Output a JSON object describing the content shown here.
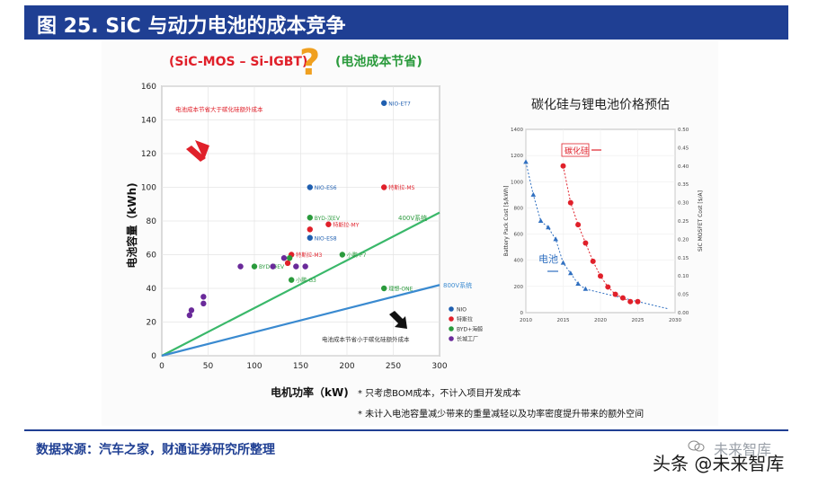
{
  "header": {
    "title": "图 25. SiC 与动力电池的成本竞争"
  },
  "footer": {
    "source": "数据来源：汽车之家，财通证券研究所整理",
    "watermark": "头条 @未来智库",
    "watermark_faint": "未来智库"
  },
  "colors": {
    "header_bg": "#1f3f93",
    "red": "#e0202a",
    "green": "#2a9a3c",
    "blue": "#1f5fb0",
    "purple": "#6a2a9a",
    "line_400v": "#3ab86a",
    "line_800v": "#3a8ad0",
    "question": "#f0a020"
  },
  "main_chart": {
    "banner_left": "(SiC-MOS – Si-IGBT)",
    "banner_question": "?",
    "banner_right": "(电池成本节省)",
    "annot_top": "电池成本节省大于碳化硅额外成本",
    "annot_bottom": "电池成本节省小于碳化硅额外成本",
    "label_400v": "400V系统",
    "label_800v": "800V系统",
    "legend_items": [
      "NIO",
      "特斯拉",
      "BYD+海鲸",
      "长城工厂"
    ],
    "notes": [
      "* 只考虑BOM成本，不计入项目开发成本",
      "* 未计入电池容量减少带来的重量减轻以及功率密度提升带来的额外空间"
    ]
  },
  "side_chart": {
    "title": "碳化硅与锂电池价格预估",
    "label_sic": "碳化硅",
    "label_battery": "电池",
    "ylabel_left": "Battery Pack Cost [$/kWh]",
    "ylabel_right": "SiC MOSFET Cost [$/A]"
  },
  "chart_data": [
    {
      "type": "scatter",
      "xlabel": "电机功率（kW)",
      "ylabel": "电池容量（kWh)",
      "xlim": [
        0,
        300
      ],
      "ylim": [
        0,
        160
      ],
      "x_ticks": [
        "0",
        "50",
        "100",
        "150",
        "200",
        "250",
        "300"
      ],
      "y_ticks": [
        "0",
        "20",
        "40",
        "60",
        "80",
        "100",
        "120",
        "140",
        "160"
      ],
      "series": [
        {
          "name": "NIO",
          "color": "#1f5fb0",
          "points": [
            {
              "x": 240,
              "y": 150,
              "label": "NIO-ET7"
            },
            {
              "x": 160,
              "y": 100,
              "label": "NIO-ES6"
            },
            {
              "x": 160,
              "y": 70,
              "label": "NIO-ES8"
            }
          ]
        },
        {
          "name": "特斯拉",
          "color": "#e0202a",
          "points": [
            {
              "x": 240,
              "y": 100,
              "label": "特斯拉-MS"
            },
            {
              "x": 180,
              "y": 78,
              "label": "特斯拉-MY"
            },
            {
              "x": 160,
              "y": 75,
              "label": ""
            },
            {
              "x": 140,
              "y": 60,
              "label": "特斯拉-M3"
            },
            {
              "x": 136,
              "y": 55,
              "label": ""
            }
          ]
        },
        {
          "name": "BYD+海鲸",
          "color": "#2a9a3c",
          "points": [
            {
              "x": 160,
              "y": 82,
              "label": "BYD-汉EV"
            },
            {
              "x": 195,
              "y": 60,
              "label": "小鹏-P7"
            },
            {
              "x": 100,
              "y": 53,
              "label": "BYD-秦EV"
            },
            {
              "x": 138,
              "y": 58,
              "label": ""
            },
            {
              "x": 140,
              "y": 45,
              "label": "小鹏-G3"
            },
            {
              "x": 240,
              "y": 40,
              "label": "理想-ONE"
            }
          ]
        },
        {
          "name": "长城工厂",
          "color": "#6a2a9a",
          "points": [
            {
              "x": 85,
              "y": 53,
              "label": ""
            },
            {
              "x": 120,
              "y": 53,
              "label": ""
            },
            {
              "x": 132,
              "y": 58,
              "label": ""
            },
            {
              "x": 145,
              "y": 53,
              "label": ""
            },
            {
              "x": 155,
              "y": 53,
              "label": ""
            },
            {
              "x": 45,
              "y": 35,
              "label": ""
            },
            {
              "x": 45,
              "y": 31,
              "label": ""
            },
            {
              "x": 32,
              "y": 27,
              "label": ""
            },
            {
              "x": 30,
              "y": 24,
              "label": ""
            }
          ]
        }
      ],
      "lines": [
        {
          "name": "400V系统",
          "from": [
            0,
            0
          ],
          "to": [
            300,
            85
          ]
        },
        {
          "name": "800V系统",
          "from": [
            0,
            0
          ],
          "to": [
            300,
            42
          ]
        }
      ]
    },
    {
      "type": "scatter",
      "x_ticks": [
        "2010",
        "2015",
        "2020",
        "2025",
        "2030"
      ],
      "xlim": [
        2010,
        2030
      ],
      "y_left_ticks": [
        "0",
        "200",
        "400",
        "600",
        "800",
        "1000",
        "1200",
        "1400"
      ],
      "ylim_left": [
        0,
        1400
      ],
      "y_right_ticks": [
        "0.00",
        "0.05",
        "0.10",
        "0.15",
        "0.20",
        "0.25",
        "0.30",
        "0.35",
        "0.40",
        "0.45",
        "0.50"
      ],
      "ylim_right": [
        0,
        0.5
      ],
      "series": [
        {
          "name": "电池",
          "axis": "left",
          "color": "#2f6fc0",
          "points": [
            [
              2010,
              1150
            ],
            [
              2011,
              900
            ],
            [
              2012,
              700
            ],
            [
              2013,
              650
            ],
            [
              2014,
              560
            ],
            [
              2015,
              380
            ],
            [
              2016,
              300
            ],
            [
              2017,
              220
            ],
            [
              2018,
              180
            ]
          ]
        },
        {
          "name": "碳化硅",
          "axis": "right",
          "color": "#e0202a",
          "points": [
            [
              2015,
              0.4
            ],
            [
              2016,
              0.3
            ],
            [
              2017,
              0.24
            ],
            [
              2018,
              0.19
            ],
            [
              2019,
              0.14
            ],
            [
              2020,
              0.1
            ],
            [
              2021,
              0.07
            ],
            [
              2022,
              0.05
            ],
            [
              2023,
              0.04
            ],
            [
              2024,
              0.03
            ],
            [
              2025,
              0.03
            ]
          ]
        }
      ]
    }
  ]
}
